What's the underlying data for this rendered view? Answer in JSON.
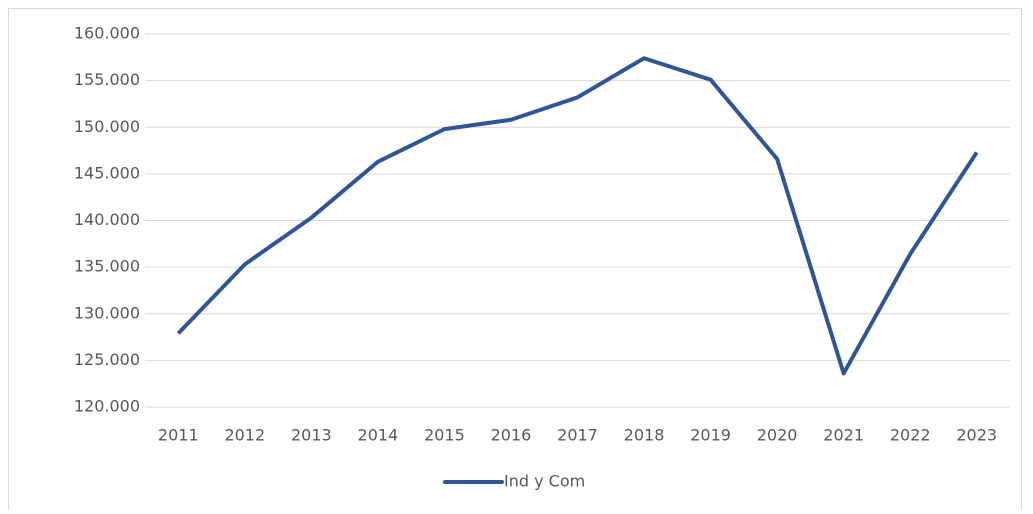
{
  "chart_data": {
    "type": "line",
    "categories": [
      "2011",
      "2012",
      "2013",
      "2014",
      "2015",
      "2016",
      "2017",
      "2018",
      "2019",
      "2020",
      "2021",
      "2022",
      "2023"
    ],
    "series": [
      {
        "name": "Ind y Com",
        "color": "#2f5597",
        "values": [
          127900,
          135300,
          140300,
          146300,
          149800,
          150800,
          153200,
          157400,
          155100,
          146600,
          123600,
          136400,
          147300
        ]
      }
    ],
    "ylim": [
      120000,
      160000
    ],
    "yticks": [
      {
        "value": 120000,
        "label": "120.000"
      },
      {
        "value": 125000,
        "label": "125.000"
      },
      {
        "value": 130000,
        "label": "130.000"
      },
      {
        "value": 135000,
        "label": "135.000"
      },
      {
        "value": 140000,
        "label": "140.000"
      },
      {
        "value": 145000,
        "label": "145.000"
      },
      {
        "value": 150000,
        "label": "150.000"
      },
      {
        "value": 155000,
        "label": "155.000"
      },
      {
        "value": 160000,
        "label": "160.000"
      }
    ],
    "grid": true,
    "legend": "bottom"
  }
}
